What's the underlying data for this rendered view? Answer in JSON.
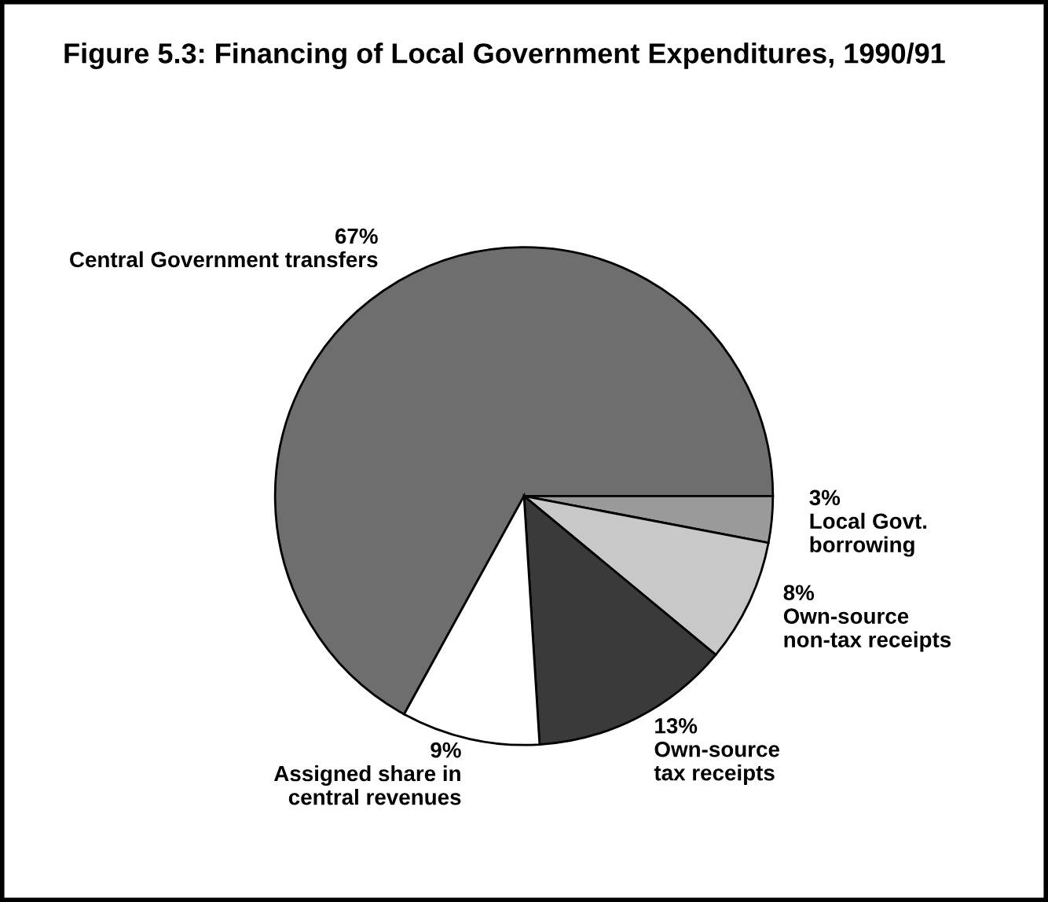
{
  "chart_data": {
    "type": "pie",
    "title": "Figure 5.3: Financing of Local Government Expenditures, 1990/91",
    "categories": [
      "Central Government transfers",
      "Local Govt.\nborrowing",
      "Own-source\nnon-tax receipts",
      "Own-source\ntax receipts",
      "Assigned share in\ncentral revenues"
    ],
    "values": [
      67,
      3,
      8,
      13,
      9
    ],
    "value_labels": [
      "67%",
      "3%",
      "8%",
      "13%",
      "9%"
    ],
    "colors": [
      "#6e6e6e",
      "#9a9a9a",
      "#c8c8c8",
      "#3a3a3a",
      "#ffffff"
    ],
    "legend": false
  }
}
